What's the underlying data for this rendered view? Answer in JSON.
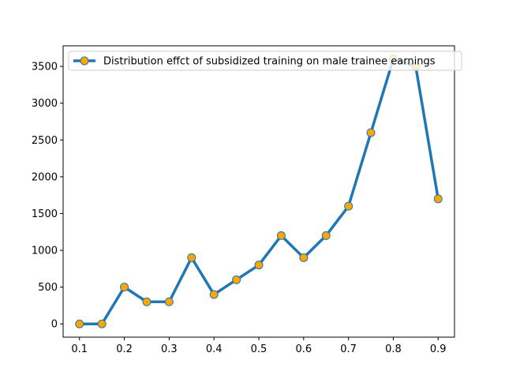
{
  "chart_data": {
    "type": "line",
    "title": "",
    "xlabel": "",
    "ylabel": "",
    "x": [
      0.1,
      0.15,
      0.2,
      0.25,
      0.3,
      0.35,
      0.4,
      0.45,
      0.5,
      0.55,
      0.6,
      0.65,
      0.7,
      0.75,
      0.8,
      0.85,
      0.9
    ],
    "series": [
      {
        "name": "Distribution effct of subsidized training on male trainee earnings",
        "values": [
          0,
          0,
          500,
          300,
          300,
          900,
          400,
          600,
          800,
          1200,
          900,
          1200,
          1600,
          2600,
          3600,
          3500,
          1700
        ],
        "line_color": "#1f77b4",
        "marker_color": "#ffa500"
      }
    ],
    "xlim": [
      0.0635,
      0.9365
    ],
    "ylim": [
      -180,
      3780
    ],
    "xticks": [
      "0.1",
      "0.2",
      "0.3",
      "0.4",
      "0.5",
      "0.6",
      "0.7",
      "0.8",
      "0.9"
    ],
    "yticks": [
      "0",
      "500",
      "1000",
      "1500",
      "2000",
      "2500",
      "3000",
      "3500"
    ],
    "grid": false,
    "legend_position": "top-right"
  }
}
